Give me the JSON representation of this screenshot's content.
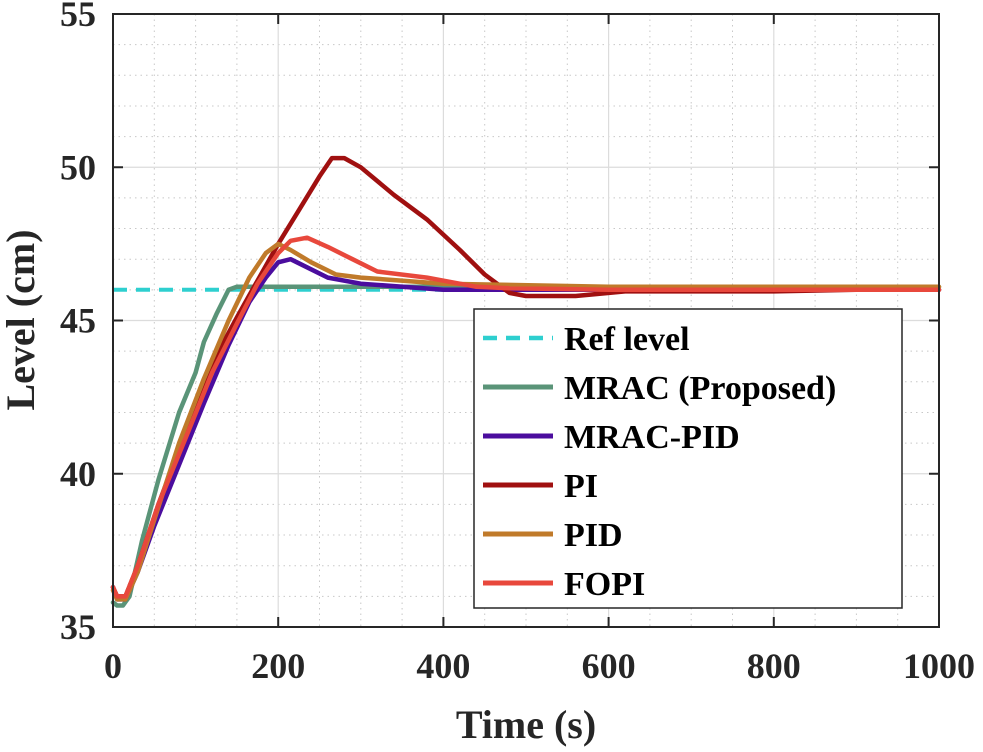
{
  "chart_data": {
    "type": "line",
    "title": "",
    "xlabel": "Time (s)",
    "ylabel": "Level (cm)",
    "xlim": [
      0,
      1000
    ],
    "ylim": [
      35,
      55
    ],
    "xticks": [
      0,
      200,
      400,
      600,
      800,
      1000
    ],
    "yticks": [
      35,
      40,
      45,
      50,
      55
    ],
    "xtick_labels": [
      "0",
      "200",
      "400",
      "600",
      "800",
      "1000"
    ],
    "ytick_labels": [
      "35",
      "40",
      "45",
      "50",
      "55"
    ],
    "grid": true,
    "minor_grid": true,
    "legend_position": "bottom-right",
    "series": [
      {
        "name": "Ref level",
        "color": "#2ecfcf",
        "dash": true,
        "x": [
          0,
          400
        ],
        "y": [
          46.0,
          46.0
        ]
      },
      {
        "name": "MRAC (Proposed)",
        "color": "#5a9478",
        "x": [
          0,
          5,
          12,
          20,
          35,
          55,
          80,
          100,
          110,
          125,
          140,
          150,
          165,
          200,
          300,
          400,
          600,
          800,
          1000
        ],
        "y": [
          35.8,
          35.7,
          35.7,
          36.0,
          37.8,
          39.8,
          42.0,
          43.3,
          44.3,
          45.2,
          46.0,
          46.1,
          46.1,
          46.1,
          46.1,
          46.1,
          46.1,
          46.1,
          46.1
        ]
      },
      {
        "name": "MRAC-PID",
        "color": "#4b0d9e",
        "x": [
          0,
          5,
          15,
          30,
          50,
          80,
          110,
          140,
          165,
          185,
          200,
          215,
          230,
          260,
          300,
          400,
          500,
          700,
          1000
        ],
        "y": [
          36.3,
          35.9,
          35.9,
          36.8,
          38.3,
          40.3,
          42.3,
          44.2,
          45.6,
          46.4,
          46.9,
          47.0,
          46.8,
          46.4,
          46.2,
          46.0,
          46.0,
          46.0,
          46.0
        ]
      },
      {
        "name": "PI",
        "color": "#a01010",
        "x": [
          0,
          5,
          15,
          30,
          55,
          90,
          120,
          150,
          175,
          200,
          225,
          250,
          265,
          280,
          300,
          340,
          380,
          420,
          450,
          480,
          500,
          560,
          620,
          700,
          800,
          900,
          1000
        ],
        "y": [
          36.3,
          36.0,
          36.0,
          37.0,
          39.0,
          41.5,
          43.6,
          45.1,
          46.3,
          47.5,
          48.6,
          49.7,
          50.3,
          50.3,
          50.0,
          49.1,
          48.3,
          47.3,
          46.5,
          45.9,
          45.8,
          45.8,
          45.95,
          45.95,
          45.95,
          46.0,
          46.0
        ]
      },
      {
        "name": "PID",
        "color": "#c07a2a",
        "x": [
          0,
          5,
          15,
          30,
          50,
          80,
          110,
          140,
          165,
          185,
          200,
          215,
          240,
          270,
          300,
          400,
          600,
          1000
        ],
        "y": [
          36.2,
          35.9,
          35.9,
          36.8,
          38.5,
          41.0,
          43.1,
          45.0,
          46.4,
          47.2,
          47.5,
          47.3,
          46.9,
          46.5,
          46.4,
          46.2,
          46.1,
          46.1
        ]
      },
      {
        "name": "FOPI",
        "color": "#e8483c",
        "x": [
          0,
          5,
          15,
          30,
          55,
          90,
          120,
          150,
          175,
          200,
          215,
          235,
          260,
          290,
          320,
          380,
          440,
          480,
          600,
          800,
          1000
        ],
        "y": [
          36.3,
          36.0,
          36.0,
          37.0,
          39.0,
          41.3,
          43.3,
          44.9,
          46.2,
          47.2,
          47.6,
          47.7,
          47.4,
          47.0,
          46.6,
          46.4,
          46.1,
          46.05,
          46.0,
          46.0,
          46.0
        ]
      }
    ]
  }
}
